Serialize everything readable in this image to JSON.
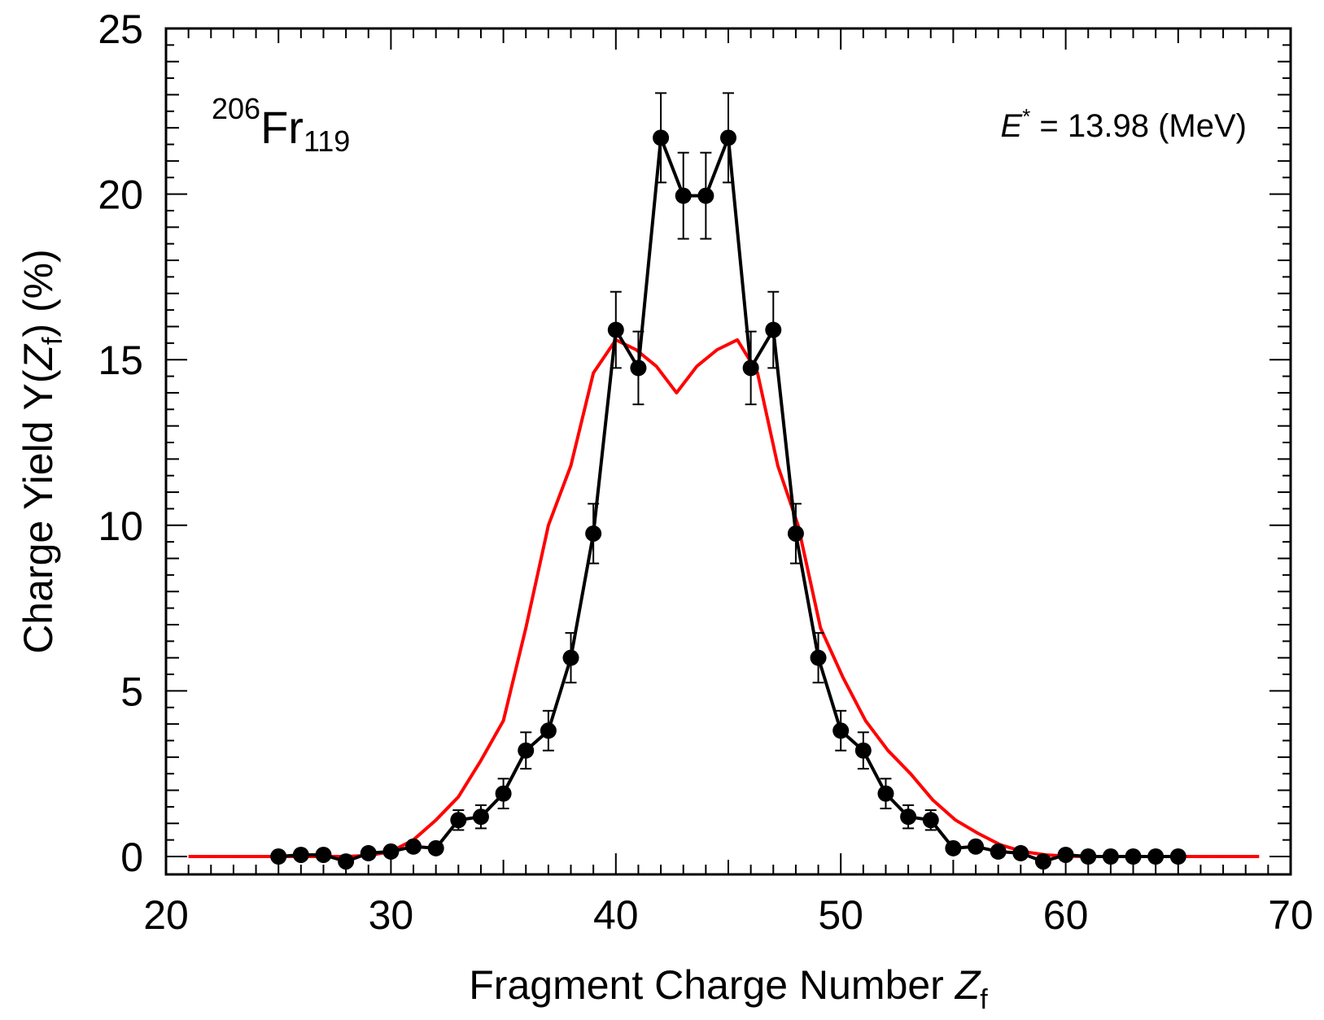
{
  "chart_data": {
    "type": "line",
    "title": "",
    "xlabel": {
      "text": "Fragment Charge Number ",
      "var": "Z",
      "sub": "f"
    },
    "ylabel": {
      "text": "Charge Yield Y(",
      "var": "Z",
      "sub": "f",
      "tail": ") (%)"
    },
    "xlim": [
      20,
      70
    ],
    "ylim": [
      -0.4,
      25
    ],
    "x_ticks": [
      20,
      30,
      40,
      50,
      60,
      70
    ],
    "y_ticks": [
      0,
      5,
      10,
      15,
      20,
      25
    ],
    "x_tick_labels": [
      "20",
      "30",
      "40",
      "50",
      "60",
      "70"
    ],
    "y_tick_labels": [
      "0",
      "5",
      "10",
      "15",
      "20",
      "25"
    ],
    "grid": false,
    "annotations": {
      "nucleus": {
        "mass": "206",
        "symbol": "Fr",
        "neutrons": "119"
      },
      "energy": {
        "var": "E",
        "sup": "*",
        "text": " =  13.98 (MeV)"
      }
    },
    "series": [
      {
        "color": "#000000",
        "markers": true,
        "x": [
          25,
          26,
          27,
          28,
          29,
          30,
          31,
          32,
          33,
          34,
          35,
          36,
          37,
          38,
          39,
          40,
          41,
          42,
          43,
          44,
          45,
          46,
          47,
          48,
          49,
          50,
          51,
          52,
          53,
          54,
          55,
          56,
          57,
          58,
          59,
          60,
          61,
          62,
          63,
          64,
          65
        ],
        "y": [
          0.0,
          0.05,
          0.05,
          -0.15,
          0.1,
          0.15,
          0.3,
          0.25,
          1.1,
          1.2,
          1.9,
          3.2,
          3.8,
          6.0,
          9.75,
          15.9,
          14.75,
          21.7,
          19.95,
          19.95,
          21.7,
          14.75,
          15.9,
          9.75,
          6.0,
          3.8,
          3.2,
          1.9,
          1.2,
          1.1,
          0.25,
          0.3,
          0.15,
          0.1,
          -0.15,
          0.05,
          0.0,
          0.0,
          0.0,
          0.0,
          0.0
        ],
        "yerr": [
          0,
          0,
          0,
          0,
          0,
          0,
          0,
          0,
          0.3,
          0.35,
          0.45,
          0.55,
          0.6,
          0.75,
          0.9,
          1.15,
          1.1,
          1.35,
          1.3,
          1.3,
          1.35,
          1.1,
          1.15,
          0.9,
          0.75,
          0.6,
          0.55,
          0.45,
          0.35,
          0.3,
          0,
          0,
          0,
          0,
          0,
          0,
          0,
          0,
          0,
          0,
          0
        ]
      },
      {
        "color": "#ff0000",
        "markers": false,
        "x": [
          21,
          22,
          23,
          24,
          25,
          26,
          27,
          28,
          29,
          30,
          31,
          32,
          33,
          34,
          35,
          36,
          37,
          38,
          39,
          40,
          40.9,
          41.8,
          42.7,
          43.6,
          44.5,
          45.4,
          46.3,
          47.2,
          48.1,
          49.1,
          50.1,
          51.1,
          52.1,
          53.1,
          54.1,
          55.1,
          56.1,
          57.1,
          58.1,
          59.1,
          60.1,
          61.1,
          62.1,
          63.1,
          64.1,
          65.1,
          66.1,
          67.1,
          68.1,
          68.6
        ],
        "y": [
          0,
          0,
          0,
          0,
          0,
          0,
          0,
          0,
          0.03,
          0.15,
          0.5,
          1.1,
          1.8,
          2.9,
          4.1,
          6.9,
          10.0,
          11.8,
          14.6,
          15.6,
          15.3,
          14.8,
          14.0,
          14.8,
          15.3,
          15.6,
          14.6,
          11.8,
          10.0,
          6.9,
          5.4,
          4.1,
          3.2,
          2.5,
          1.7,
          1.1,
          0.7,
          0.35,
          0.15,
          0.05,
          0.01,
          0,
          0,
          0,
          0,
          0,
          0,
          0,
          0,
          0
        ]
      }
    ]
  }
}
